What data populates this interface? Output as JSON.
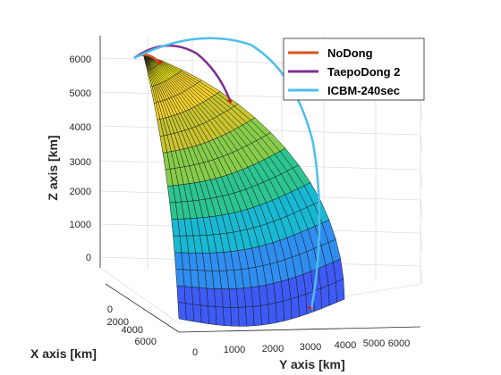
{
  "chart_data": {
    "type": "surface3d",
    "title": "",
    "axes": {
      "x": {
        "label": "X axis [km]",
        "ticks": [
          "0",
          "2000",
          "4000",
          "6000"
        ]
      },
      "y": {
        "label": "Y axis [km]",
        "ticks": [
          "0",
          "1000",
          "2000",
          "3000",
          "4000",
          "5000",
          "6000"
        ]
      },
      "z": {
        "label": "Z axis [km]",
        "ticks": [
          "0",
          "1000",
          "2000",
          "3000",
          "4000",
          "5000",
          "6000"
        ]
      }
    },
    "grid": true,
    "legend_position": "top-right",
    "surface": {
      "description_colors": [
        "#3e26a8",
        "#2e87f7",
        "#1ab2d4",
        "#20c48b",
        "#90ca47",
        "#f0c32e",
        "#f9fb0e"
      ]
    },
    "series": [
      {
        "name": "NoDong",
        "color": "#d95319"
      },
      {
        "name": "TaepoDong 2",
        "color": "#7e2f8e"
      },
      {
        "name": "ICBM-240sec",
        "color": "#4dbeee"
      }
    ]
  }
}
